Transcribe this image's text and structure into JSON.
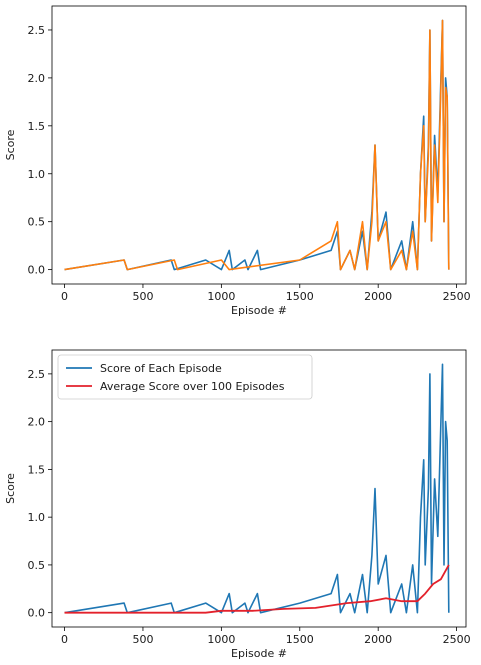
{
  "chart_data": [
    {
      "type": "line",
      "xlabel": "Episode #",
      "ylabel": "Score",
      "xlim": [
        -80,
        2560
      ],
      "ylim": [
        -0.15,
        2.75
      ],
      "xticks": [
        0,
        500,
        1000,
        1500,
        2000,
        2500
      ],
      "yticks": [
        0.0,
        0.5,
        1.0,
        1.5,
        2.0,
        2.5
      ],
      "legend": "none",
      "series": [
        {
          "color": "#1f77b4",
          "values": [
            [
              0,
              0
            ],
            [
              380,
              0.1
            ],
            [
              400,
              0
            ],
            [
              680,
              0.1
            ],
            [
              700,
              0
            ],
            [
              900,
              0.1
            ],
            [
              1000,
              0
            ],
            [
              1050,
              0.2
            ],
            [
              1070,
              0
            ],
            [
              1150,
              0.1
            ],
            [
              1170,
              0
            ],
            [
              1230,
              0.2
            ],
            [
              1250,
              0
            ],
            [
              1500,
              0.1
            ],
            [
              1700,
              0.2
            ],
            [
              1740,
              0.4
            ],
            [
              1760,
              0
            ],
            [
              1820,
              0.2
            ],
            [
              1850,
              0
            ],
            [
              1900,
              0.4
            ],
            [
              1930,
              0
            ],
            [
              1960,
              0.6
            ],
            [
              1980,
              1.3
            ],
            [
              2000,
              0.3
            ],
            [
              2050,
              0.6
            ],
            [
              2080,
              0
            ],
            [
              2150,
              0.3
            ],
            [
              2180,
              0
            ],
            [
              2220,
              0.5
            ],
            [
              2250,
              0
            ],
            [
              2270,
              1.0
            ],
            [
              2290,
              1.6
            ],
            [
              2300,
              0.5
            ],
            [
              2320,
              1.3
            ],
            [
              2330,
              2.5
            ],
            [
              2340,
              0.3
            ],
            [
              2360,
              1.4
            ],
            [
              2380,
              0.8
            ],
            [
              2400,
              2.0
            ],
            [
              2410,
              2.6
            ],
            [
              2420,
              0.5
            ],
            [
              2430,
              2.0
            ],
            [
              2440,
              1.8
            ],
            [
              2450,
              0
            ]
          ]
        },
        {
          "color": "#ff7f0e",
          "values": [
            [
              0,
              0
            ],
            [
              380,
              0.1
            ],
            [
              400,
              0
            ],
            [
              700,
              0.1
            ],
            [
              720,
              0
            ],
            [
              1000,
              0.1
            ],
            [
              1050,
              0
            ],
            [
              1500,
              0.1
            ],
            [
              1700,
              0.3
            ],
            [
              1740,
              0.5
            ],
            [
              1760,
              0
            ],
            [
              1820,
              0.2
            ],
            [
              1850,
              0
            ],
            [
              1900,
              0.5
            ],
            [
              1930,
              0
            ],
            [
              1960,
              0.5
            ],
            [
              1980,
              1.3
            ],
            [
              2000,
              0.3
            ],
            [
              2050,
              0.5
            ],
            [
              2080,
              0
            ],
            [
              2150,
              0.2
            ],
            [
              2180,
              0
            ],
            [
              2220,
              0.4
            ],
            [
              2250,
              0
            ],
            [
              2270,
              1.0
            ],
            [
              2290,
              1.5
            ],
            [
              2300,
              0.5
            ],
            [
              2320,
              1.2
            ],
            [
              2330,
              2.5
            ],
            [
              2340,
              0.3
            ],
            [
              2360,
              1.3
            ],
            [
              2380,
              0.7
            ],
            [
              2400,
              1.9
            ],
            [
              2410,
              2.6
            ],
            [
              2420,
              0.5
            ],
            [
              2430,
              1.9
            ],
            [
              2440,
              1.8
            ],
            [
              2450,
              0
            ]
          ]
        }
      ]
    },
    {
      "type": "line",
      "xlabel": "Episode #",
      "ylabel": "Score",
      "xlim": [
        -80,
        2560
      ],
      "ylim": [
        -0.15,
        2.75
      ],
      "xticks": [
        0,
        500,
        1000,
        1500,
        2000,
        2500
      ],
      "yticks": [
        0.0,
        0.5,
        1.0,
        1.5,
        2.0,
        2.5
      ],
      "legend": "top-left",
      "series": [
        {
          "name": "Score of Each Episode",
          "color": "#1f77b4",
          "values": [
            [
              0,
              0
            ],
            [
              380,
              0.1
            ],
            [
              400,
              0
            ],
            [
              680,
              0.1
            ],
            [
              700,
              0
            ],
            [
              900,
              0.1
            ],
            [
              1000,
              0
            ],
            [
              1050,
              0.2
            ],
            [
              1070,
              0
            ],
            [
              1150,
              0.1
            ],
            [
              1170,
              0
            ],
            [
              1230,
              0.2
            ],
            [
              1250,
              0
            ],
            [
              1500,
              0.1
            ],
            [
              1700,
              0.2
            ],
            [
              1740,
              0.4
            ],
            [
              1760,
              0
            ],
            [
              1820,
              0.2
            ],
            [
              1850,
              0
            ],
            [
              1900,
              0.4
            ],
            [
              1930,
              0
            ],
            [
              1960,
              0.6
            ],
            [
              1980,
              1.3
            ],
            [
              2000,
              0.3
            ],
            [
              2050,
              0.6
            ],
            [
              2080,
              0
            ],
            [
              2150,
              0.3
            ],
            [
              2180,
              0
            ],
            [
              2220,
              0.5
            ],
            [
              2250,
              0
            ],
            [
              2270,
              1.0
            ],
            [
              2290,
              1.6
            ],
            [
              2300,
              0.5
            ],
            [
              2320,
              1.3
            ],
            [
              2330,
              2.5
            ],
            [
              2340,
              0.3
            ],
            [
              2360,
              1.4
            ],
            [
              2380,
              0.8
            ],
            [
              2400,
              2.0
            ],
            [
              2410,
              2.6
            ],
            [
              2420,
              0.5
            ],
            [
              2430,
              2.0
            ],
            [
              2440,
              1.8
            ],
            [
              2450,
              0
            ]
          ]
        },
        {
          "name": "Average Score over 100 Episodes",
          "color": "#e3212b",
          "values": [
            [
              0,
              0
            ],
            [
              900,
              0
            ],
            [
              1000,
              0.02
            ],
            [
              1200,
              0.02
            ],
            [
              1400,
              0.04
            ],
            [
              1600,
              0.05
            ],
            [
              1800,
              0.1
            ],
            [
              1950,
              0.12
            ],
            [
              2050,
              0.15
            ],
            [
              2150,
              0.12
            ],
            [
              2250,
              0.12
            ],
            [
              2300,
              0.2
            ],
            [
              2350,
              0.3
            ],
            [
              2400,
              0.35
            ],
            [
              2450,
              0.5
            ]
          ]
        }
      ]
    }
  ]
}
